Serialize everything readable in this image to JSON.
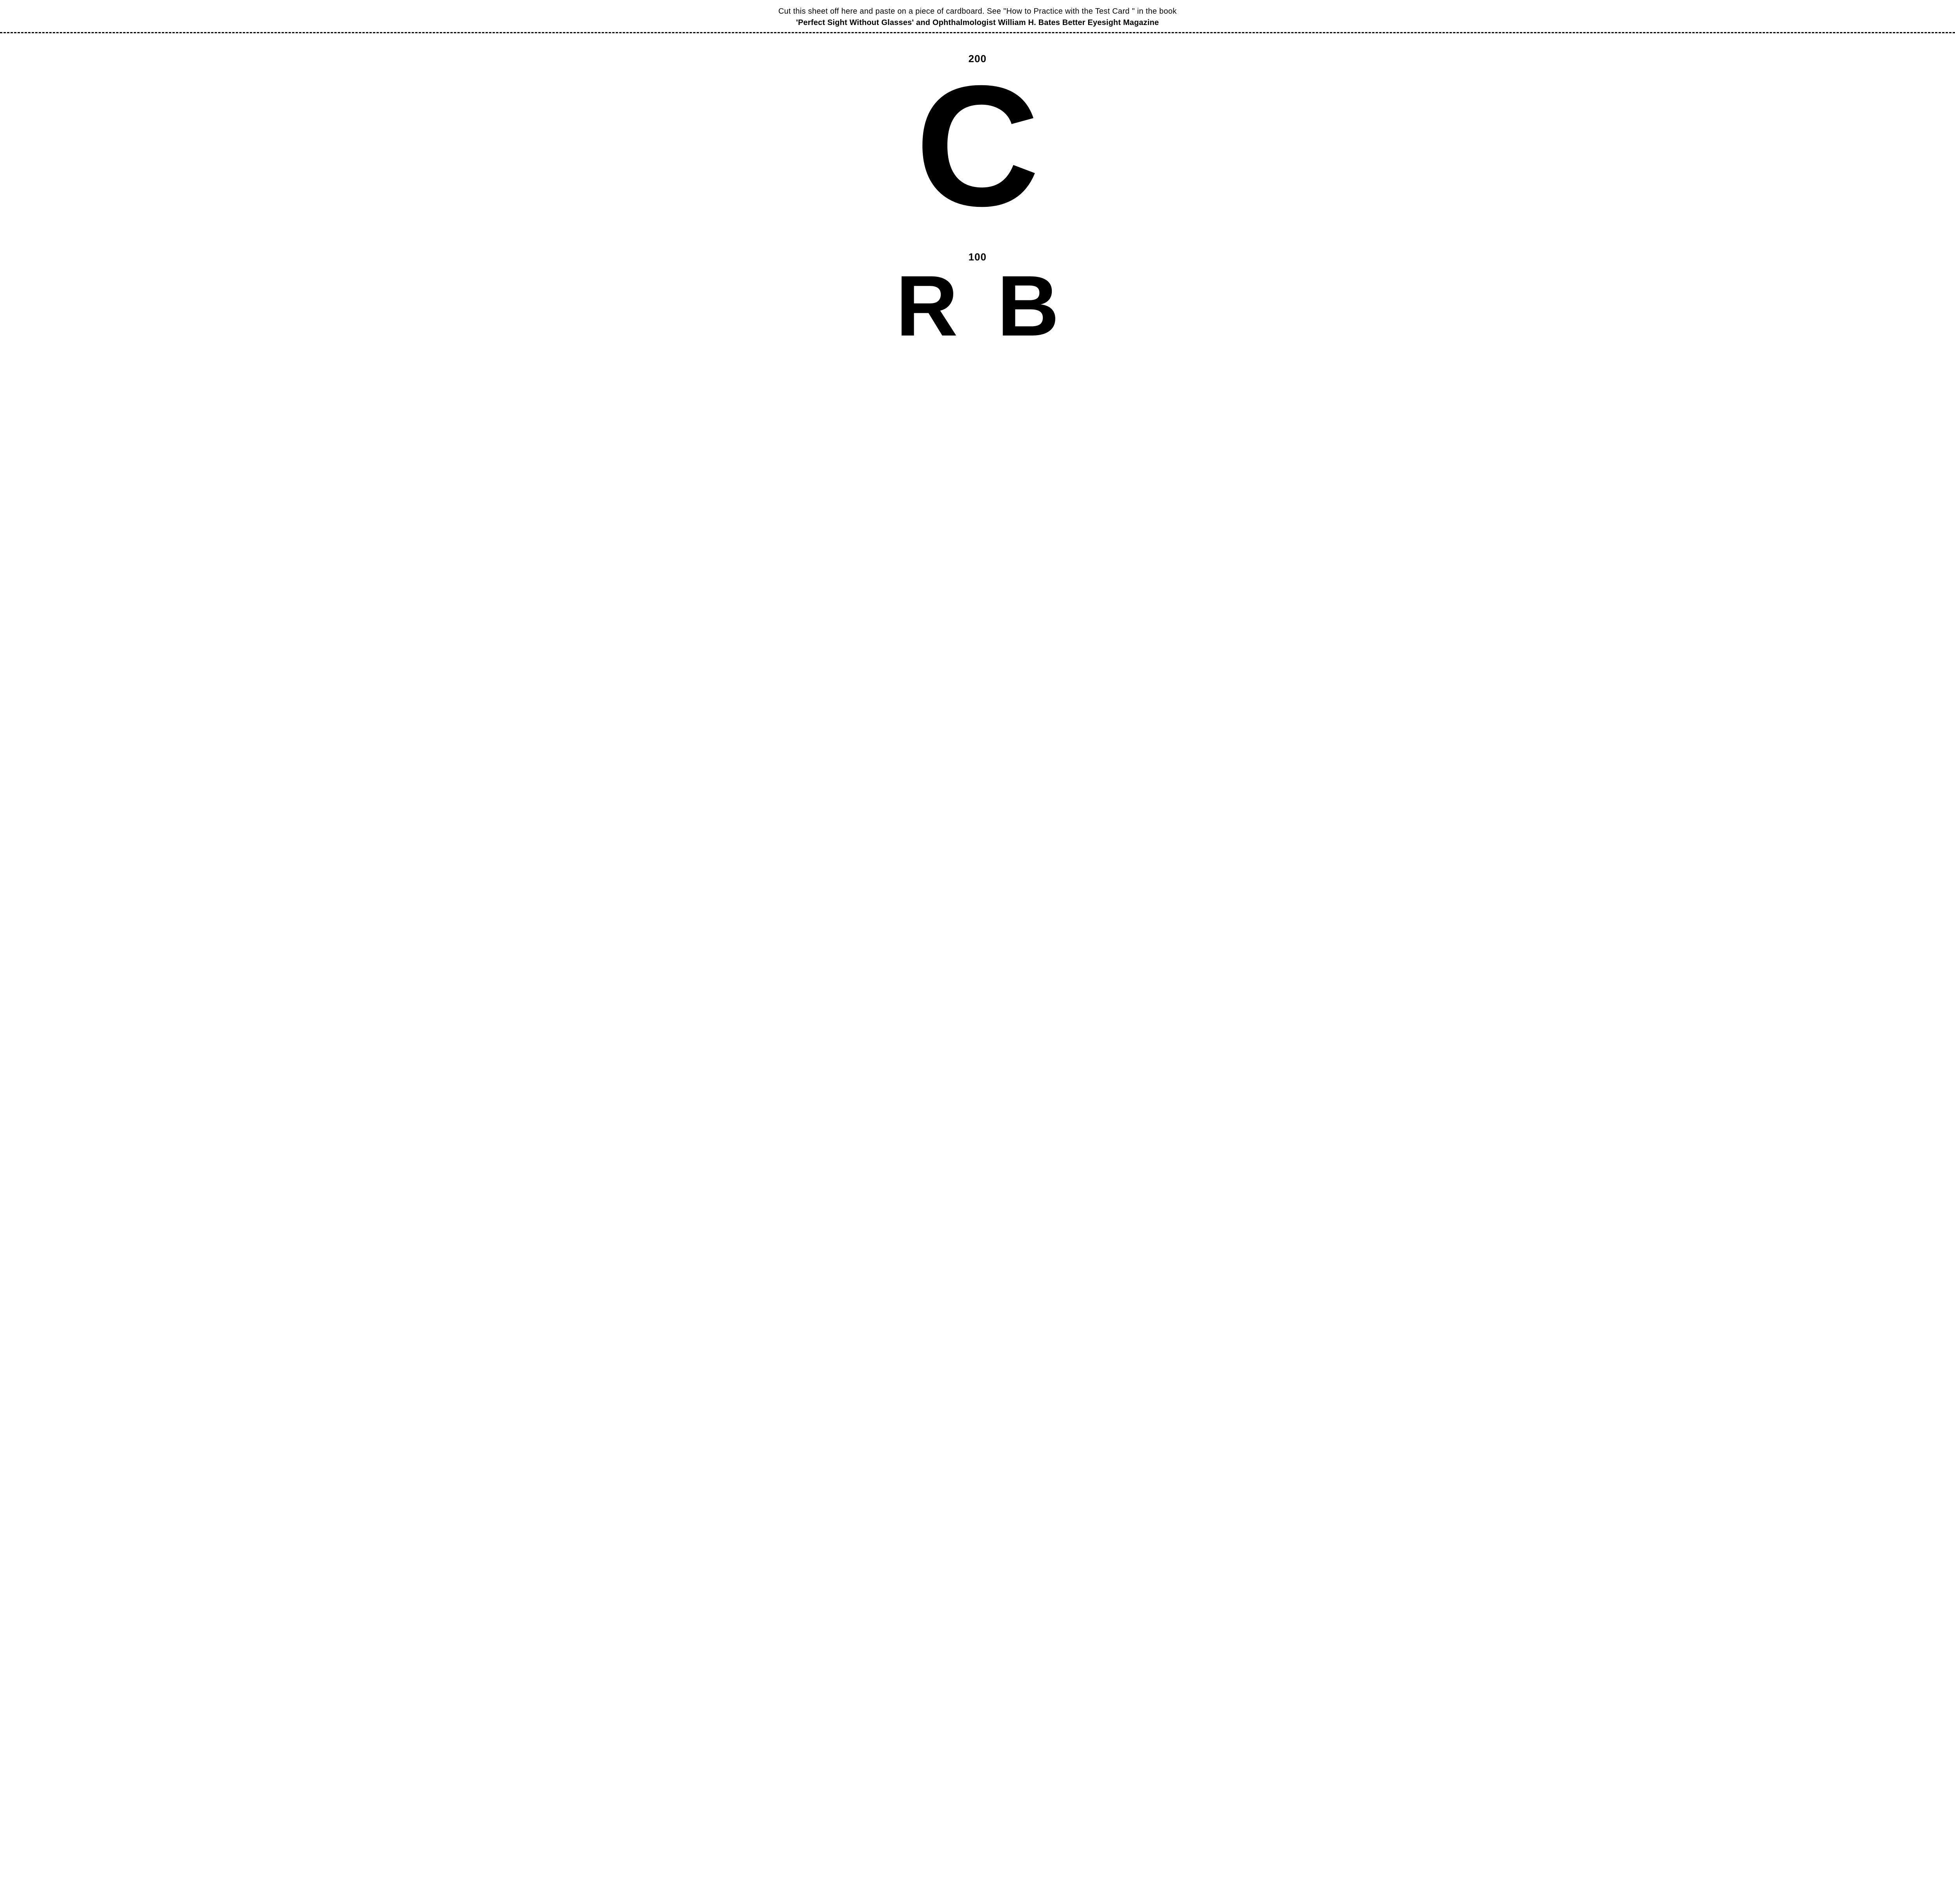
{
  "header": {
    "line1": "Cut this sheet off here and paste on a piece of cardboard. See \"How to Practice with the Test Card \" in the book",
    "line2": "'Perfect Sight Without Glasses' and Ophthalmologist William H. Bates Better Eyesight Magazine"
  },
  "chart": {
    "background_color": "#ffffff",
    "text_color": "#000000",
    "cutline_style": "dashed",
    "cutline_color": "#000000",
    "rows": [
      {
        "label": "200",
        "label_fontsize_pt": 20,
        "letters": [
          "C"
        ],
        "letter_fontsize_px": 440,
        "letter_gap_px": 0,
        "font_weight": 900
      },
      {
        "label": "100",
        "label_fontsize_pt": 20,
        "letters": [
          "R",
          "B"
        ],
        "letter_fontsize_px": 220,
        "letter_gap_px": 100,
        "font_weight": 900
      }
    ]
  }
}
